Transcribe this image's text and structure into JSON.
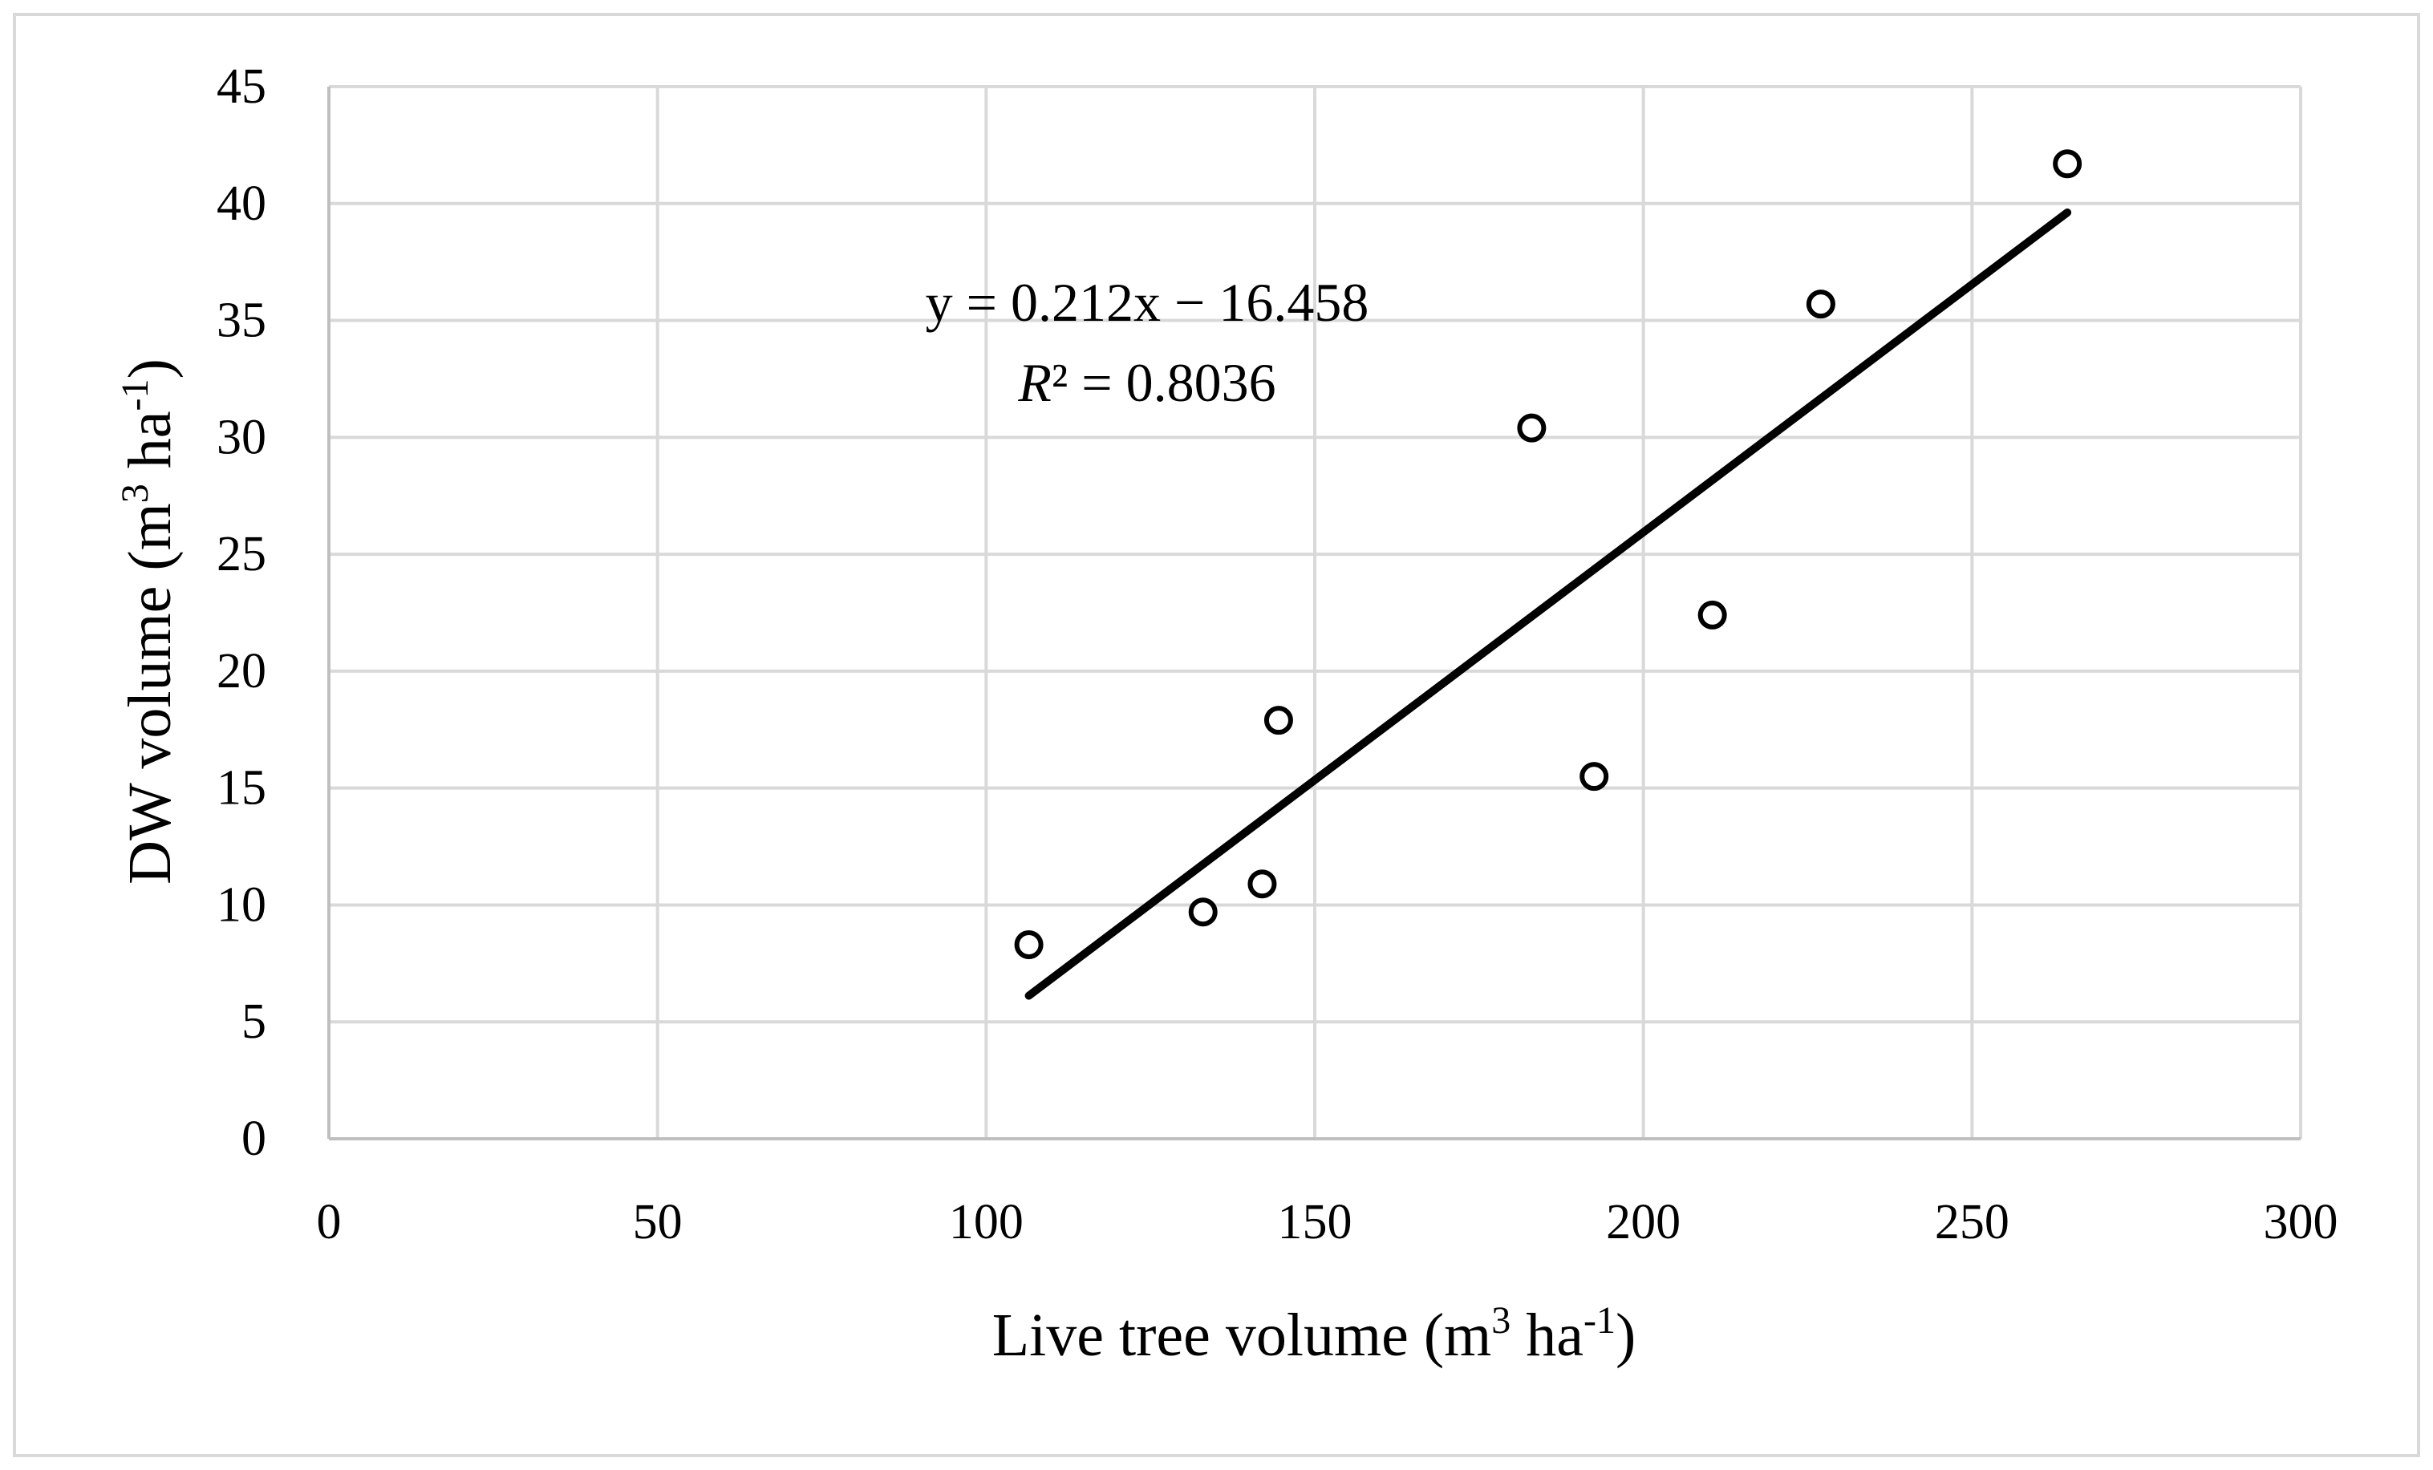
{
  "chart_data": {
    "type": "scatter",
    "title": "",
    "xlabel": {
      "prefix": "Live tree volume (m",
      "sup1": "3",
      "mid": " ha",
      "sup2": "-1",
      "suffix": ")"
    },
    "ylabel": {
      "prefix": "DW volume (m",
      "sup1": "3",
      "mid": " ha",
      "sup2": "-1",
      "suffix": ")"
    },
    "xlim": [
      0,
      300
    ],
    "ylim": [
      0,
      45
    ],
    "xticks": [
      0,
      50,
      100,
      150,
      200,
      250,
      300
    ],
    "yticks": [
      0,
      5,
      10,
      15,
      20,
      25,
      30,
      35,
      40,
      45
    ],
    "grid": true,
    "legend": "none",
    "series": [
      {
        "marker": "open-circle",
        "points": [
          {
            "x": 106.5,
            "y": 8.3
          },
          {
            "x": 133,
            "y": 9.7
          },
          {
            "x": 142,
            "y": 10.9
          },
          {
            "x": 144.5,
            "y": 17.9
          },
          {
            "x": 183,
            "y": 30.4
          },
          {
            "x": 192.5,
            "y": 15.5
          },
          {
            "x": 210.5,
            "y": 22.4
          },
          {
            "x": 227,
            "y": 35.7
          },
          {
            "x": 264.5,
            "y": 41.7
          }
        ]
      }
    ],
    "trendline": {
      "slope": 0.212,
      "intercept": -16.458,
      "x_range": [
        106.5,
        264.5
      ],
      "equation": "y = 0.212x − 16.458",
      "r2_symbol": "R",
      "r2_text": "² = 0.8036"
    },
    "colors": {
      "grid": "#d9d9d9",
      "axis": "#bfbfbf",
      "marker": "#000000",
      "trendline": "#000000",
      "frame": "#d9d9d9"
    }
  }
}
